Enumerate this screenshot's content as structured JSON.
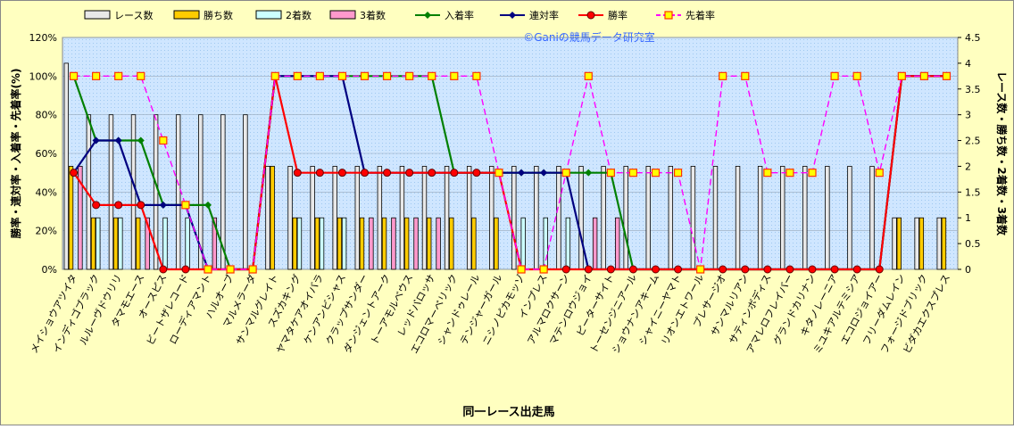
{
  "chart_data": {
    "type": "bar",
    "watermark": "©Ganiの競馬データ研究室",
    "xlabel": "同一レース出走馬",
    "ylabel": "勝率・連対率・入着率・先着率(%)",
    "y2label": "レース数・勝ち数・2着数・3着数",
    "categories": [
      "メイショウアツイタ",
      "インディゴブラック",
      "ルルーヴドウリリ",
      "タマモエース",
      "オースピス",
      "ビートザレコード",
      "ローディアマント",
      "ハルオーブ",
      "マルメラーダ",
      "サンマルグレイト",
      "スズカキング",
      "ヤマタケアオイバラ",
      "ケンアンビシャス",
      "クラップサンダー",
      "ダンジェントアーク",
      "トーアモルベウス",
      "レッドバロッサ",
      "エコロマーベリック",
      "シャンドゥレール",
      "テンジャーガール",
      "ニシノピカモッゾ",
      "インプレス",
      "アルマロクサーン",
      "マテンロウジョイ",
      "ピーターサイト",
      "トーセンジニアール",
      "ショウナンアキーム",
      "シャイニーヤマト",
      "リオンエトワール",
      "プレサージオ",
      "サンマルリアン",
      "サティンボディス",
      "アマレロフレイバー",
      "グランドカリナン",
      "キタノレーニア",
      "ミユキアルテミシア",
      "エコロジョイアー",
      "フリーダムレイン",
      "フォージドブリック",
      "ビダカエクスプレス"
    ],
    "ylim": [
      0,
      120
    ],
    "yticks": [
      {
        "value": 0,
        "label": "0%"
      },
      {
        "value": 20,
        "label": "20%"
      },
      {
        "value": 40,
        "label": "40%"
      },
      {
        "value": 60,
        "label": "60%"
      },
      {
        "value": 80,
        "label": "80%"
      },
      {
        "value": 100,
        "label": "100%"
      },
      {
        "value": 120,
        "label": "120%"
      }
    ],
    "y2lim": [
      0,
      4.5
    ],
    "y2ticks": [
      0,
      0.5,
      1,
      1.5,
      2,
      2.5,
      3,
      3.5,
      4,
      4.5
    ],
    "grid": true,
    "series": [
      {
        "name": "レース数",
        "type": "bar",
        "axis": "y2",
        "color": "#e8e8e8",
        "values": [
          4,
          3,
          3,
          3,
          3,
          3,
          3,
          3,
          3,
          2,
          2,
          2,
          2,
          2,
          2,
          2,
          2,
          2,
          2,
          2,
          2,
          2,
          2,
          2,
          2,
          2,
          2,
          2,
          2,
          2,
          2,
          2,
          2,
          2,
          2,
          2,
          2,
          1,
          1,
          1
        ]
      },
      {
        "name": "勝ち数",
        "type": "bar",
        "axis": "y2",
        "color": "#ffcc00",
        "values": [
          2,
          1,
          1,
          1,
          0,
          0,
          0,
          0,
          0,
          2,
          1,
          1,
          1,
          1,
          1,
          1,
          1,
          1,
          1,
          1,
          0,
          0,
          0,
          0,
          0,
          0,
          0,
          0,
          0,
          0,
          0,
          0,
          0,
          0,
          0,
          0,
          0,
          1,
          1,
          1
        ]
      },
      {
        "name": "2着数",
        "type": "bar",
        "axis": "y2",
        "color": "#ccffff",
        "values": [
          0,
          1,
          1,
          0,
          1,
          1,
          0,
          0,
          0,
          0,
          1,
          1,
          1,
          0,
          0,
          0,
          0,
          0,
          0,
          0,
          1,
          1,
          1,
          0,
          0,
          0,
          0,
          0,
          0,
          0,
          0,
          0,
          0,
          0,
          0,
          0,
          0,
          0,
          0,
          0
        ]
      },
      {
        "name": "3着数",
        "type": "bar",
        "axis": "y2",
        "color": "#ff99cc",
        "values": [
          2,
          0,
          0,
          1,
          0,
          0,
          1,
          0,
          0,
          0,
          0,
          0,
          0,
          1,
          1,
          1,
          1,
          0,
          0,
          0,
          0,
          0,
          0,
          1,
          1,
          0,
          0,
          0,
          0,
          0,
          0,
          0,
          0,
          0,
          0,
          0,
          0,
          0,
          0,
          0
        ]
      },
      {
        "name": "入着率",
        "type": "line",
        "color": "#008000",
        "marker": "diamond",
        "values": [
          100,
          66.7,
          66.7,
          66.7,
          33.3,
          33.3,
          33.3,
          0,
          0,
          100,
          100,
          100,
          100,
          100,
          100,
          100,
          100,
          50,
          50,
          50,
          50,
          50,
          50,
          50,
          50,
          0,
          0,
          0,
          0,
          0,
          0,
          0,
          0,
          0,
          0,
          0,
          0,
          100,
          100,
          100
        ]
      },
      {
        "name": "連対率",
        "type": "line",
        "color": "#000080",
        "marker": "diamond",
        "values": [
          50,
          66.7,
          66.7,
          33.3,
          33.3,
          33.3,
          0,
          0,
          0,
          100,
          100,
          100,
          100,
          50,
          50,
          50,
          50,
          50,
          50,
          50,
          50,
          50,
          50,
          0,
          0,
          0,
          0,
          0,
          0,
          0,
          0,
          0,
          0,
          0,
          0,
          0,
          0,
          100,
          100,
          100
        ]
      },
      {
        "name": "勝率",
        "type": "line",
        "color": "#ff0000",
        "marker": "circle",
        "values": [
          50,
          33.3,
          33.3,
          33.3,
          0,
          0,
          0,
          0,
          0,
          100,
          50,
          50,
          50,
          50,
          50,
          50,
          50,
          50,
          50,
          50,
          0,
          0,
          0,
          0,
          0,
          0,
          0,
          0,
          0,
          0,
          0,
          0,
          0,
          0,
          0,
          0,
          0,
          100,
          100,
          100
        ]
      },
      {
        "name": "先着率",
        "type": "line",
        "color": "#ff00ff",
        "marker": "square",
        "dashed": true,
        "values": [
          100,
          100,
          100,
          100,
          66.7,
          33.3,
          0,
          0,
          0,
          100,
          100,
          100,
          100,
          100,
          100,
          100,
          100,
          100,
          100,
          50,
          0,
          0,
          50,
          100,
          50,
          50,
          50,
          50,
          0,
          100,
          100,
          50,
          50,
          50,
          100,
          100,
          50,
          100,
          100,
          100
        ]
      }
    ]
  }
}
